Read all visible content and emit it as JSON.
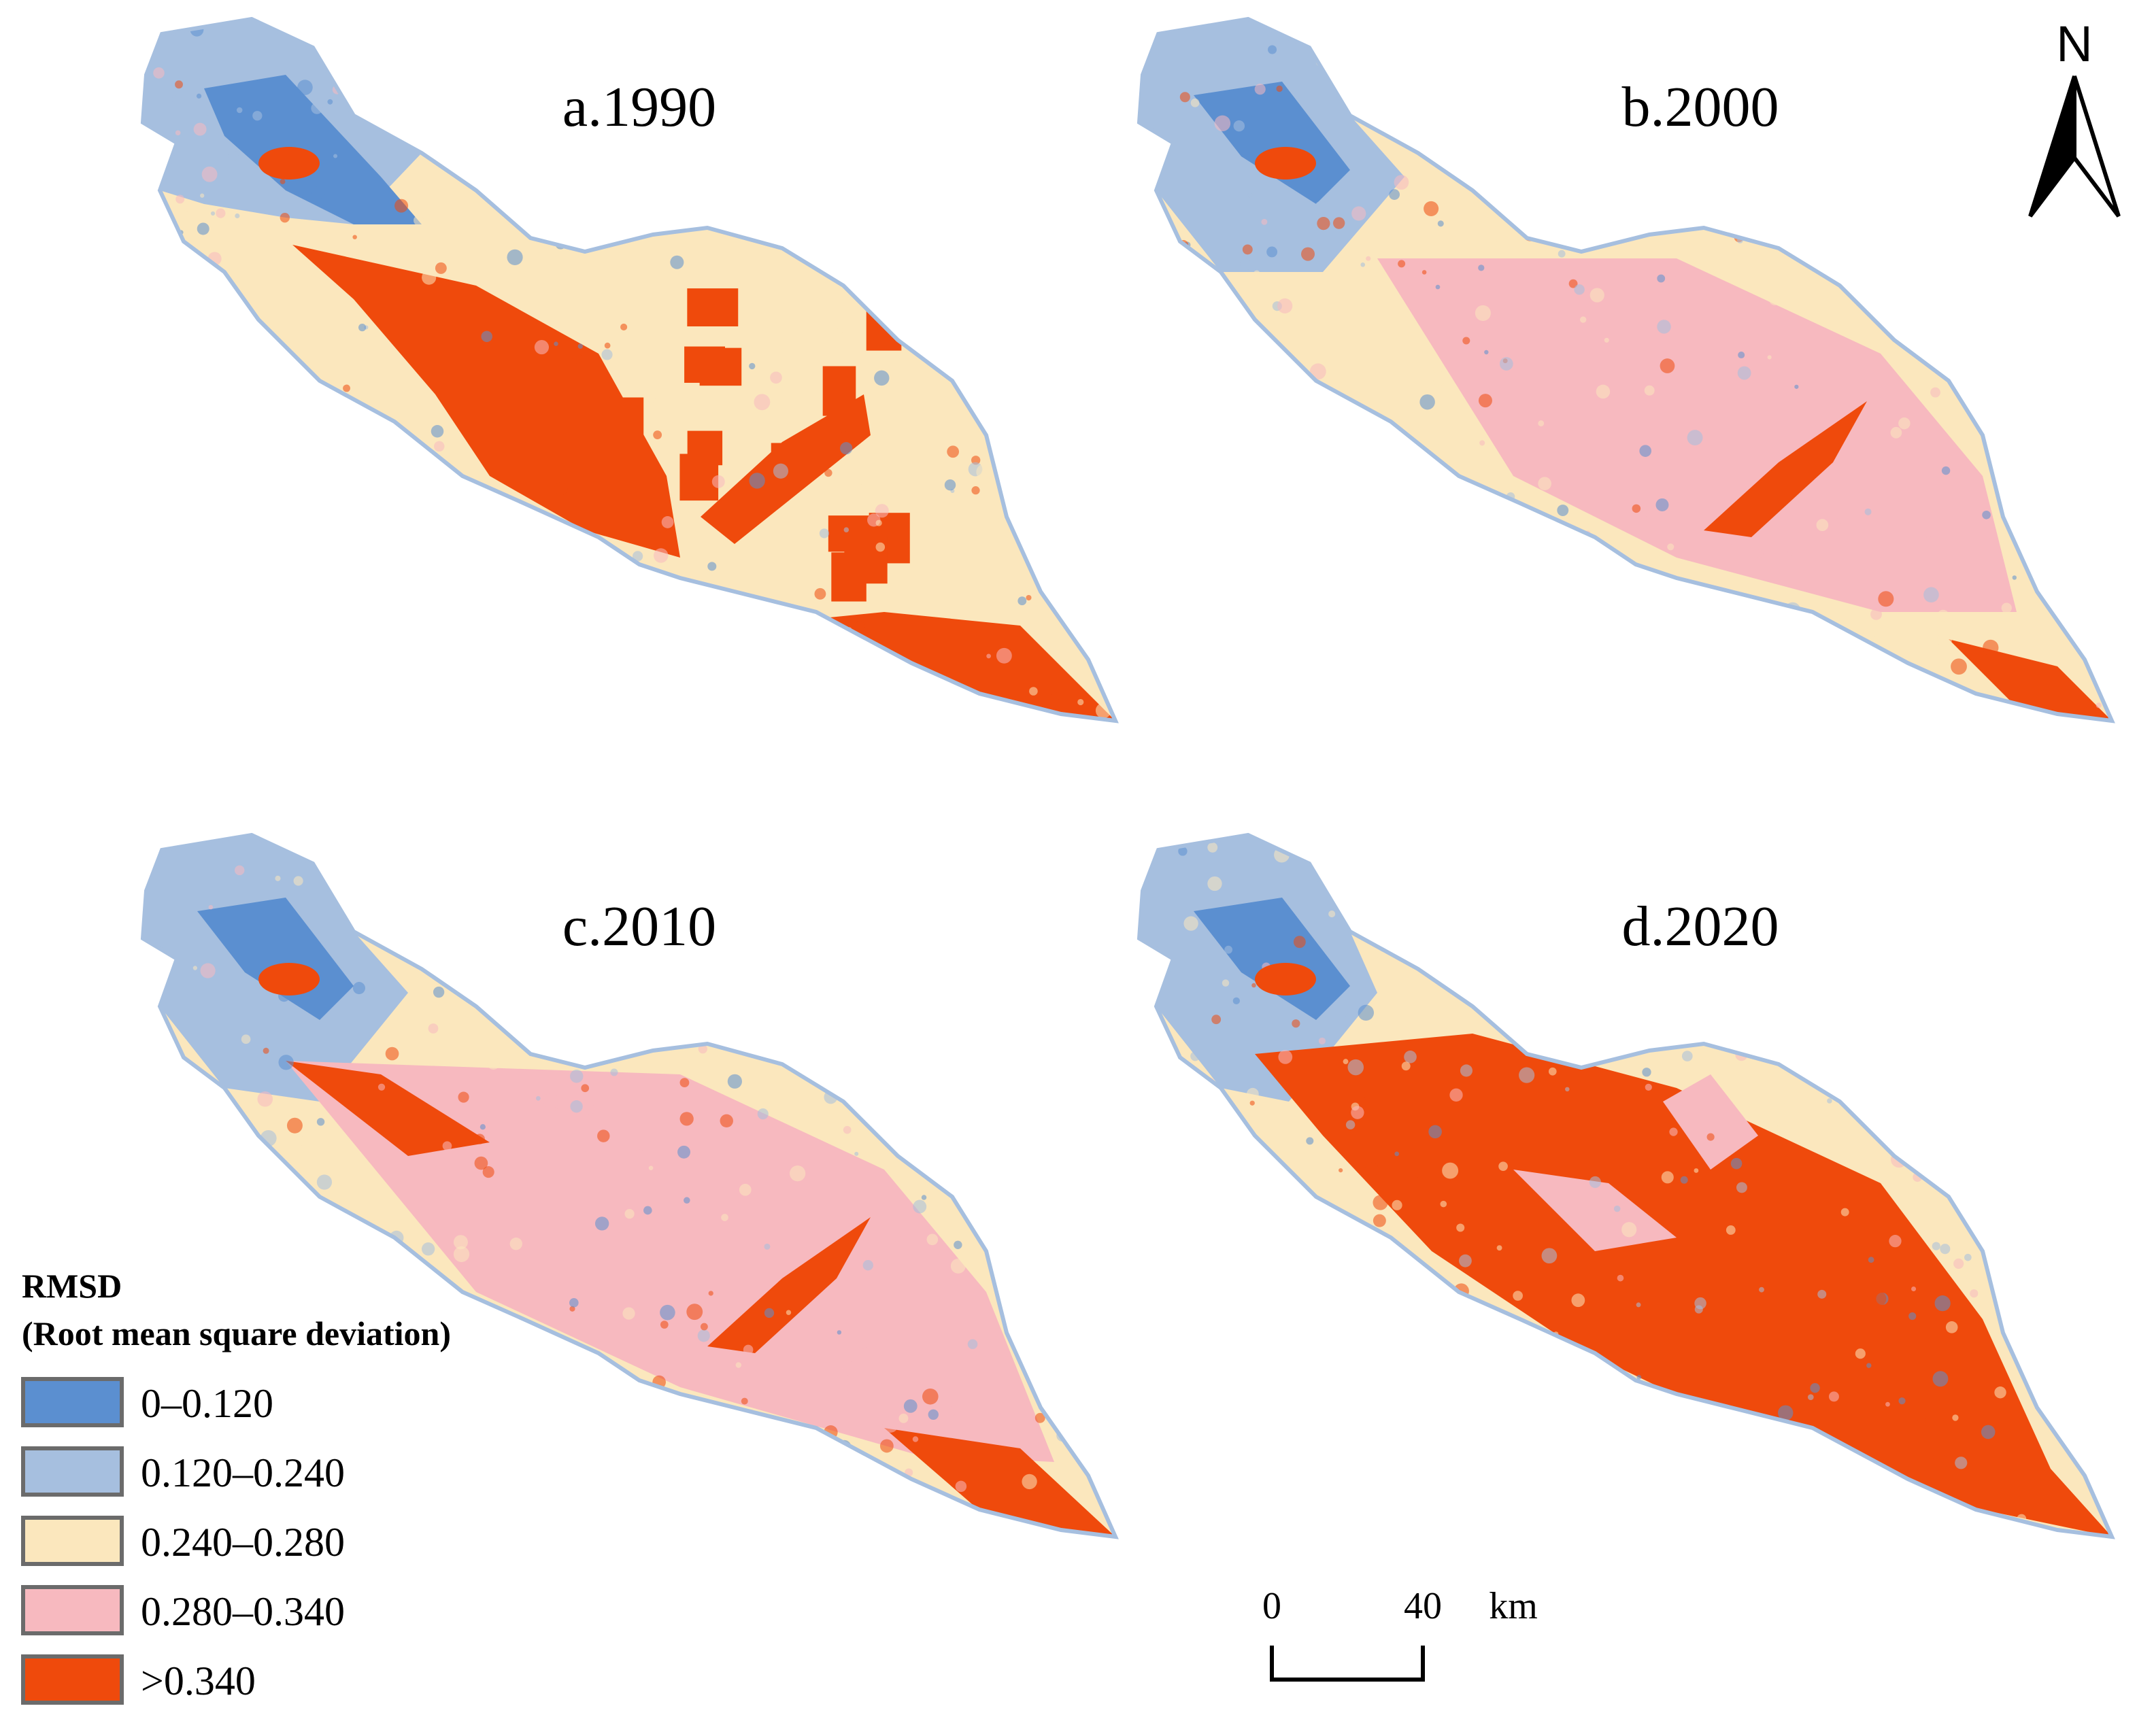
{
  "panels": [
    {
      "title": "a.1990",
      "dominant_class": 3
    },
    {
      "title": "b.2000",
      "dominant_class": 3
    },
    {
      "title": "c.2010",
      "dominant_class": 3
    },
    {
      "title": "d.2020",
      "dominant_class": 4
    }
  ],
  "legend": {
    "title_line1": "RMSD",
    "title_line2": "(Root mean square deviation)",
    "classes": [
      {
        "label": "0–0.120",
        "color": "#5b8fd0"
      },
      {
        "label": "0.120–0.240",
        "color": "#a6bfdf"
      },
      {
        "label": "0.240–0.280",
        "color": "#fbe7bd"
      },
      {
        "label": "0.280–0.340",
        "color": "#f7b9bf"
      },
      {
        "label": ">0.340",
        "color": "#ef4a0c"
      }
    ]
  },
  "scale_bar": {
    "start_label": "0",
    "end_label": "40",
    "unit": "km"
  },
  "north_arrow": {
    "label": "N",
    "icon": "north-arrow-icon"
  }
}
